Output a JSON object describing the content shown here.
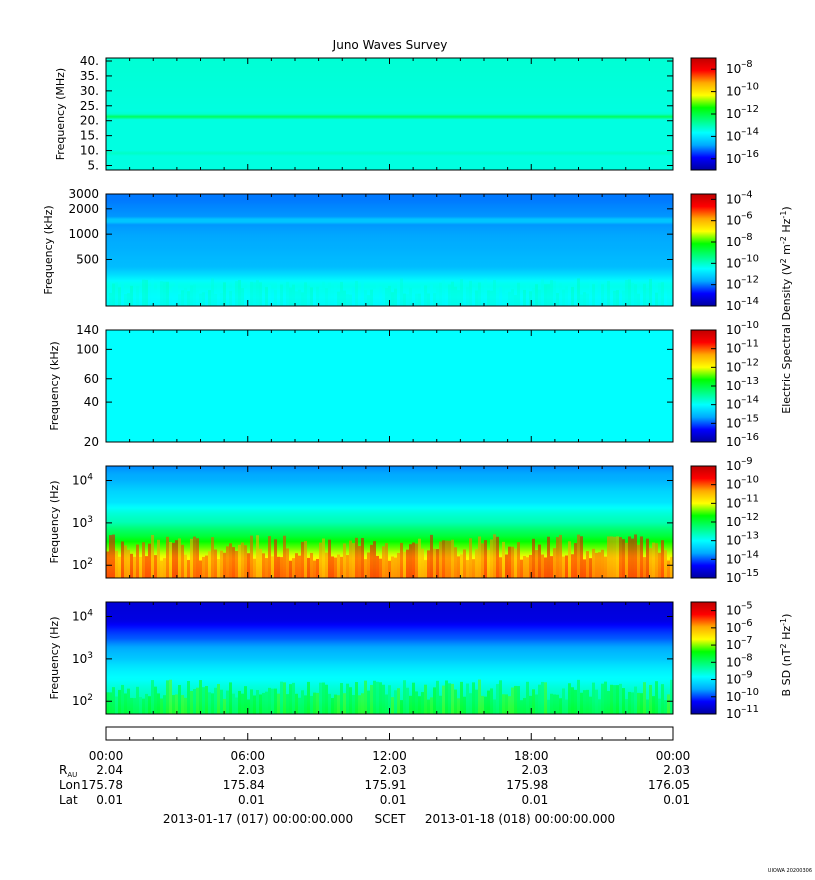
{
  "chart_data": {
    "type": "heatmap",
    "title": "Juno Waves Survey",
    "panels": [
      {
        "ylabel": "Frequency (MHz)",
        "yscale": "linear",
        "ylim": [
          3.5,
          41
        ],
        "yticks": [
          {
            "v": 5,
            "label": "5."
          },
          {
            "v": 10,
            "label": "10."
          },
          {
            "v": 15,
            "label": "15."
          },
          {
            "v": 20,
            "label": "20."
          },
          {
            "v": 25,
            "label": "25."
          },
          {
            "v": 30,
            "label": "30."
          },
          {
            "v": 35,
            "label": "35."
          },
          {
            "v": 40,
            "label": "40."
          }
        ],
        "colorbar": {
          "scale": "log",
          "exp_min": -17,
          "exp_max": -7,
          "tick_exps": [
            -8,
            -10,
            -12,
            -14,
            -16
          ],
          "label": ""
        },
        "spectrum": [
          {
            "v": 5,
            "exp": -13.4
          },
          {
            "v": 8.2,
            "exp": -13.4
          },
          {
            "v": 8.7,
            "exp": -12.6
          },
          {
            "v": 9.3,
            "exp": -13.4
          },
          {
            "v": 20.8,
            "exp": -13.4
          },
          {
            "v": 21.6,
            "exp": -11.6
          },
          {
            "v": 22.3,
            "exp": -13.4
          },
          {
            "v": 40,
            "exp": -13.3
          }
        ]
      },
      {
        "ylabel": "Frequency (kHz)",
        "yscale": "log",
        "ylim": [
          140,
          3000
        ],
        "yticks": [
          {
            "v": 500,
            "label": "500"
          },
          {
            "v": 1000,
            "label": "1000"
          },
          {
            "v": 2000,
            "label": "2000"
          },
          {
            "v": 3000,
            "label": "3000"
          }
        ],
        "colorbar": {
          "scale": "log",
          "exp_min": -14,
          "exp_max": -3.5,
          "tick_exps": [
            -4,
            -6,
            -8,
            -10,
            -12,
            -14
          ],
          "label": "Electric Spectral Density (V2 m-2 Hz-1)"
        },
        "spectrum": [
          {
            "v": 140,
            "exp": -10.6
          },
          {
            "v": 250,
            "exp": -10.3
          },
          {
            "v": 320,
            "exp": -10.9
          },
          {
            "v": 400,
            "exp": -11.4
          },
          {
            "v": 700,
            "exp": -11.6
          },
          {
            "v": 1300,
            "exp": -11.8
          },
          {
            "v": 1450,
            "exp": -11.0
          },
          {
            "v": 1600,
            "exp": -11.8
          },
          {
            "v": 2500,
            "exp": -12.0
          },
          {
            "v": 2800,
            "exp": -12.0
          }
        ]
      },
      {
        "ylabel": "Frequency (kHz)",
        "yscale": "log",
        "ylim": [
          20,
          140
        ],
        "yticks": [
          {
            "v": 20,
            "label": "20"
          },
          {
            "v": 40,
            "label": "40"
          },
          {
            "v": 60,
            "label": "60"
          },
          {
            "v": 100,
            "label": "100"
          },
          {
            "v": 140,
            "label": "140"
          }
        ],
        "colorbar": {
          "scale": "log",
          "exp_min": -16,
          "exp_max": -10,
          "tick_exps": [
            -10,
            -11,
            -12,
            -13,
            -14,
            -15,
            -16
          ],
          "label": ""
        },
        "spectrum": [
          {
            "v": 20,
            "exp": -14.0
          },
          {
            "v": 140,
            "exp": -14.0
          }
        ]
      },
      {
        "ylabel": "Frequency (Hz)",
        "yscale": "log",
        "ylim": [
          50,
          22000
        ],
        "yticks": [
          {
            "v": 100,
            "label": "10",
            "sup": "2"
          },
          {
            "v": 1000,
            "label": "10",
            "sup": "3"
          },
          {
            "v": 10000,
            "label": "10",
            "sup": "4"
          }
        ],
        "colorbar": {
          "scale": "log",
          "exp_min": -15,
          "exp_max": -9,
          "tick_exps": [
            -9,
            -10,
            -11,
            -12,
            -13,
            -14,
            -15
          ],
          "label": ""
        },
        "spectrum": [
          {
            "v": 50,
            "exp": -10.4
          },
          {
            "v": 100,
            "exp": -10.8
          },
          {
            "v": 250,
            "exp": -11.4
          },
          {
            "v": 500,
            "exp": -12.0
          },
          {
            "v": 1000,
            "exp": -12.6
          },
          {
            "v": 3000,
            "exp": -13.2
          },
          {
            "v": 10000,
            "exp": -13.6
          },
          {
            "v": 22000,
            "exp": -13.8
          }
        ]
      },
      {
        "ylabel": "Frequency (Hz)",
        "yscale": "log",
        "ylim": [
          50,
          22000
        ],
        "yticks": [
          {
            "v": 100,
            "label": "10",
            "sup": "2"
          },
          {
            "v": 1000,
            "label": "10",
            "sup": "3"
          },
          {
            "v": 10000,
            "label": "10",
            "sup": "4"
          }
        ],
        "colorbar": {
          "scale": "log",
          "exp_min": -11,
          "exp_max": -4.5,
          "tick_exps": [
            -5,
            -6,
            -7,
            -8,
            -9,
            -10,
            -11
          ],
          "label": "B SD (nT2 Hz-1)"
        },
        "spectrum": [
          {
            "v": 50,
            "exp": -8.0
          },
          {
            "v": 100,
            "exp": -8.4
          },
          {
            "v": 300,
            "exp": -8.8
          },
          {
            "v": 1000,
            "exp": -9.3
          },
          {
            "v": 3000,
            "exp": -9.9
          },
          {
            "v": 8000,
            "exp": -10.5
          },
          {
            "v": 22000,
            "exp": -10.6
          }
        ]
      }
    ],
    "x_ticks": [
      "00:00",
      "06:00",
      "12:00",
      "18:00",
      "00:00"
    ],
    "ephemeris": {
      "rows": [
        {
          "label": "R",
          "sub": "AU",
          "values": [
            "2.04",
            "2.03",
            "2.03",
            "2.03",
            "2.03"
          ]
        },
        {
          "label": "Lon",
          "values": [
            "175.78",
            "175.84",
            "175.91",
            "175.98",
            "176.05"
          ]
        },
        {
          "label": "Lat",
          "values": [
            "0.01",
            "0.01",
            "0.01",
            "0.01",
            "0.01"
          ]
        }
      ]
    },
    "footer": {
      "start": "2013-01-17 (017) 00:00:00.000",
      "mid": "SCET",
      "end": "2013-01-18 (018) 00:00:00.000"
    },
    "credit": "UIOWA 20200306",
    "colormap": [
      "#0000a0",
      "#0000ff",
      "#00aaff",
      "#00ffff",
      "#00ff80",
      "#00ff00",
      "#ffff00",
      "#ffaa00",
      "#ff0000",
      "#c00000"
    ]
  }
}
